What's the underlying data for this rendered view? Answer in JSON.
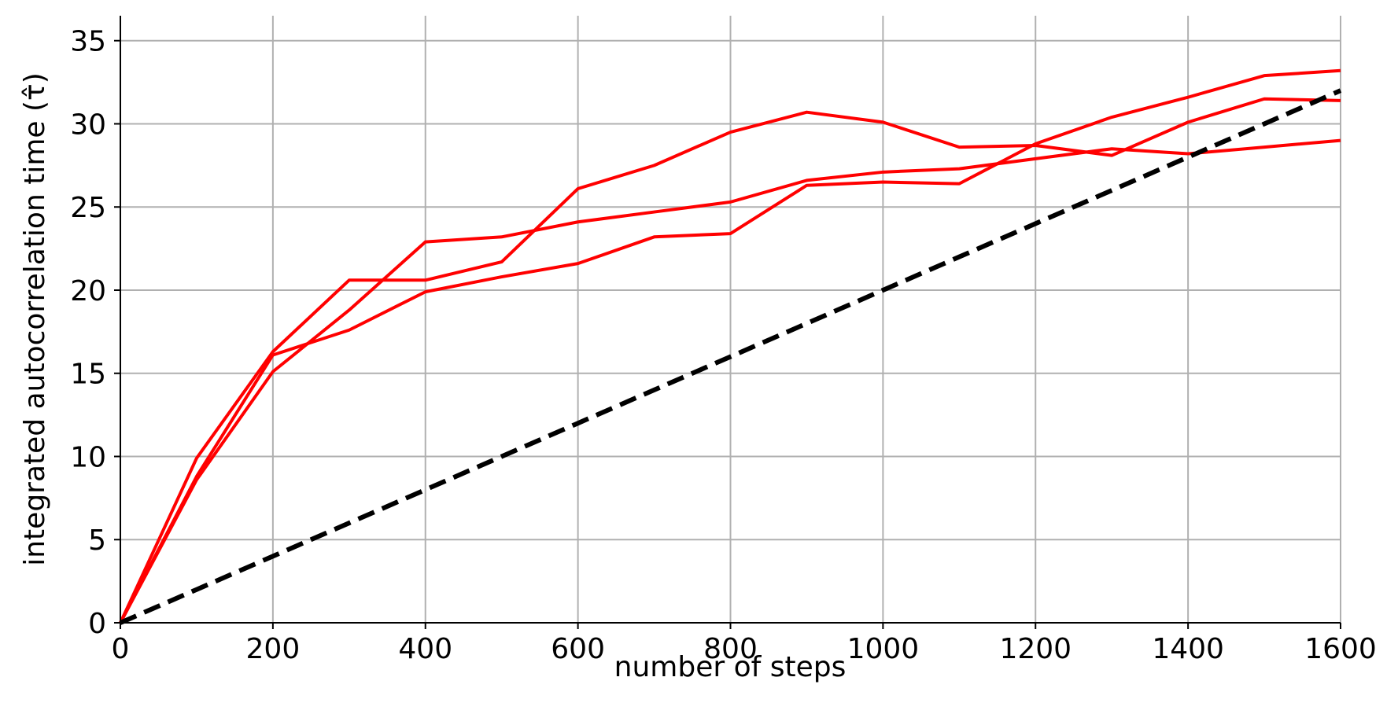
{
  "chart_data": {
    "type": "line",
    "xlabel": "number of steps",
    "ylabel": "integrated autocorrelation time (τ̂)",
    "xlim": [
      0,
      1600
    ],
    "ylim": [
      0,
      36.5
    ],
    "xticks": [
      0,
      200,
      400,
      600,
      800,
      1000,
      1200,
      1400,
      1600
    ],
    "yticks": [
      0,
      5,
      10,
      15,
      20,
      25,
      30,
      35
    ],
    "xtick_labels": [
      "0",
      "200",
      "400",
      "600",
      "800",
      "1000",
      "1200",
      "1400",
      "1600"
    ],
    "ytick_labels": [
      "0",
      "5",
      "10",
      "15",
      "20",
      "25",
      "30",
      "35"
    ],
    "grid": true,
    "x": [
      0,
      100,
      200,
      300,
      400,
      500,
      600,
      700,
      800,
      900,
      1000,
      1100,
      1200,
      1300,
      1400,
      1500,
      1600
    ],
    "series": [
      {
        "color": "#ff0000",
        "style": "solid",
        "values": [
          0,
          9.9,
          16.3,
          20.6,
          20.6,
          21.7,
          26.1,
          27.5,
          29.5,
          30.7,
          30.1,
          28.6,
          28.7,
          28.1,
          30.1,
          31.5,
          31.4
        ]
      },
      {
        "color": "#ff0000",
        "style": "solid",
        "values": [
          0,
          8.8,
          16.1,
          17.6,
          19.9,
          20.8,
          21.6,
          23.2,
          23.4,
          26.3,
          26.5,
          26.4,
          28.8,
          30.4,
          31.6,
          32.9,
          33.2
        ]
      },
      {
        "color": "#ff0000",
        "style": "solid",
        "values": [
          0,
          8.6,
          15.1,
          18.8,
          22.9,
          23.2,
          24.1,
          24.7,
          25.3,
          26.6,
          27.1,
          27.3,
          27.9,
          28.5,
          28.2,
          28.6,
          29.0
        ]
      },
      {
        "color": "#000000",
        "style": "dashed",
        "values": [
          0,
          2,
          4,
          6,
          8,
          10,
          12,
          14,
          16,
          18,
          20,
          22,
          24,
          26,
          28,
          30,
          32
        ]
      }
    ]
  }
}
